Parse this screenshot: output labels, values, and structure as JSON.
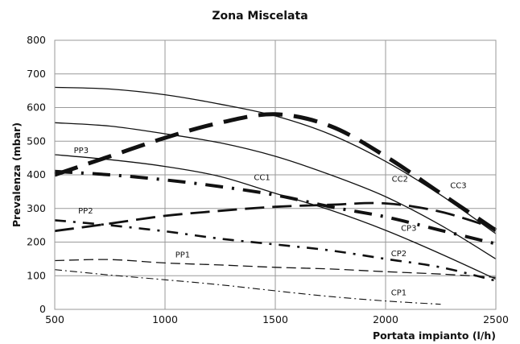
{
  "chart_data": {
    "type": "line",
    "title": "Zona Miscelata",
    "xlabel": "Portata impianto (l/h)",
    "ylabel": "Prevalenza (mbar)",
    "xlim": [
      500,
      2500
    ],
    "ylim": [
      0,
      800
    ],
    "x_ticks": [
      "500",
      "1000",
      "1500",
      "2000",
      "2500"
    ],
    "y_ticks": [
      "0",
      "100",
      "200",
      "300",
      "400",
      "500",
      "600",
      "700",
      "800"
    ],
    "grid": true,
    "legend": "none (series labelled inline)",
    "colors": {
      "lines": "#111111",
      "grid": "#999999"
    },
    "series": [
      {
        "name": "CC3",
        "style": "solid-thin",
        "points": [
          [
            500,
            660
          ],
          [
            750,
            655
          ],
          [
            1000,
            638
          ],
          [
            1250,
            610
          ],
          [
            1500,
            575
          ],
          [
            1750,
            520
          ],
          [
            2000,
            440
          ],
          [
            2250,
            340
          ],
          [
            2500,
            225
          ]
        ]
      },
      {
        "name": "CC2",
        "style": "solid-thin",
        "points": [
          [
            500,
            555
          ],
          [
            750,
            545
          ],
          [
            1000,
            522
          ],
          [
            1250,
            495
          ],
          [
            1500,
            455
          ],
          [
            1750,
            400
          ],
          [
            2000,
            335
          ],
          [
            2250,
            250
          ],
          [
            2500,
            150
          ]
        ]
      },
      {
        "name": "CC1",
        "style": "solid-thin",
        "points": [
          [
            500,
            460
          ],
          [
            750,
            445
          ],
          [
            1000,
            425
          ],
          [
            1250,
            395
          ],
          [
            1500,
            345
          ],
          [
            1750,
            295
          ],
          [
            2000,
            235
          ],
          [
            2250,
            165
          ],
          [
            2500,
            90
          ]
        ]
      },
      {
        "name": "PP3",
        "style": "long-dash-heavy",
        "points": [
          [
            500,
            400
          ],
          [
            750,
            455
          ],
          [
            1000,
            510
          ],
          [
            1250,
            555
          ],
          [
            1500,
            580
          ],
          [
            1750,
            545
          ],
          [
            2000,
            455
          ],
          [
            2250,
            345
          ],
          [
            2500,
            235
          ]
        ]
      },
      {
        "name": "CP3",
        "style": "dash-dot-heavy",
        "points": [
          [
            500,
            410
          ],
          [
            750,
            400
          ],
          [
            1000,
            385
          ],
          [
            1250,
            365
          ],
          [
            1500,
            340
          ],
          [
            1750,
            305
          ],
          [
            2000,
            275
          ],
          [
            2250,
            235
          ],
          [
            2500,
            195
          ]
        ]
      },
      {
        "name": "PP2",
        "style": "long-dash",
        "points": [
          [
            500,
            233
          ],
          [
            750,
            255
          ],
          [
            1000,
            278
          ],
          [
            1250,
            293
          ],
          [
            1500,
            305
          ],
          [
            1750,
            311
          ],
          [
            2000,
            315
          ],
          [
            2250,
            290
          ],
          [
            2500,
            240
          ]
        ]
      },
      {
        "name": "CP2",
        "style": "dash-dot",
        "points": [
          [
            500,
            265
          ],
          [
            750,
            250
          ],
          [
            1000,
            232
          ],
          [
            1250,
            210
          ],
          [
            1500,
            193
          ],
          [
            1750,
            175
          ],
          [
            2000,
            150
          ],
          [
            2250,
            125
          ],
          [
            2500,
            85
          ]
        ]
      },
      {
        "name": "PP1",
        "style": "dashed-thin",
        "points": [
          [
            500,
            145
          ],
          [
            750,
            148
          ],
          [
            1000,
            138
          ],
          [
            1250,
            132
          ],
          [
            1500,
            125
          ],
          [
            1750,
            120
          ],
          [
            2000,
            112
          ],
          [
            2250,
            105
          ],
          [
            2500,
            95
          ]
        ]
      },
      {
        "name": "CP1",
        "style": "dash-dot-thin",
        "points": [
          [
            500,
            118
          ],
          [
            750,
            102
          ],
          [
            1000,
            88
          ],
          [
            1250,
            73
          ],
          [
            1500,
            55
          ],
          [
            1750,
            38
          ],
          [
            2000,
            25
          ],
          [
            2250,
            15
          ]
        ]
      }
    ]
  }
}
